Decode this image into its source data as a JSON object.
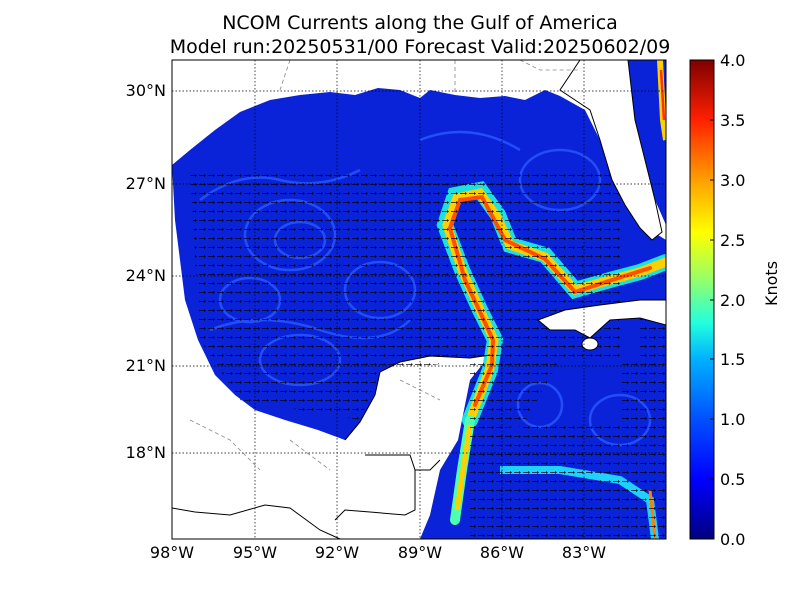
{
  "title": "NCOM Currents along the Gulf of America",
  "subtitle": "Model run:20250531/00 Forecast Valid:20250602/09",
  "colorbar": {
    "label": "Knots",
    "ticks": [
      "0.0",
      "0.5",
      "1.0",
      "1.5",
      "2.0",
      "2.5",
      "3.0",
      "3.5",
      "4.0"
    ],
    "min": 0,
    "max": 4,
    "colors": [
      "#00007f",
      "#0000ff",
      "#007fff",
      "#00ffff",
      "#7fff7f",
      "#ffff00",
      "#ff7f00",
      "#ff0000",
      "#7f0000"
    ]
  },
  "lat_ticks": [
    "30°N",
    "27°N",
    "24°N",
    "21°N",
    "18°N"
  ],
  "lon_ticks": [
    "98°W",
    "95°W",
    "92°W",
    "89°W",
    "86°W",
    "83°W"
  ],
  "colors": {
    "ocean_base": "#0a22d8",
    "land": "#ffffff",
    "coast": "#000000",
    "grid": "#000000"
  }
}
